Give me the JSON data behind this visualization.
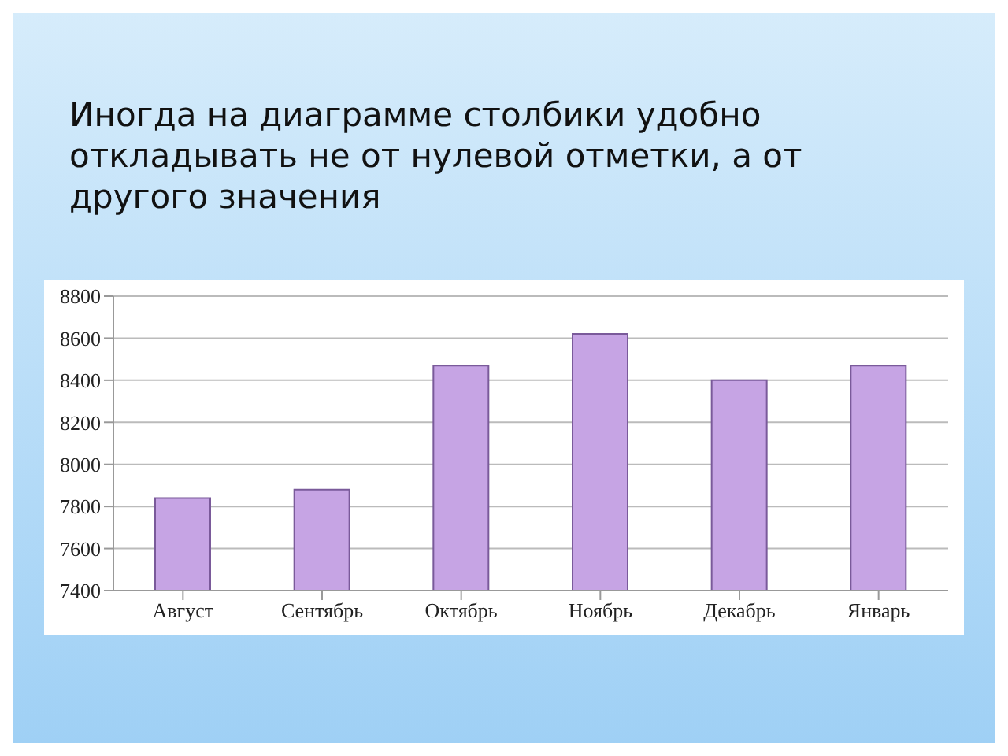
{
  "chart_data": {
    "type": "bar",
    "title": "Иногда на диаграмме столбики удобно откладывать не от нулевой отметки, а от другого значения",
    "categories": [
      "Август",
      "Сентябрь",
      "Октябрь",
      "Ноябрь",
      "Декабрь",
      "Январь"
    ],
    "values": [
      7840,
      7880,
      8470,
      8620,
      8400,
      8470
    ],
    "color": "#c6a4e4",
    "ylim": [
      7400,
      8800
    ],
    "yticks": [
      7400,
      7600,
      7800,
      8000,
      8200,
      8400,
      8600,
      8800
    ],
    "grid": "y"
  }
}
